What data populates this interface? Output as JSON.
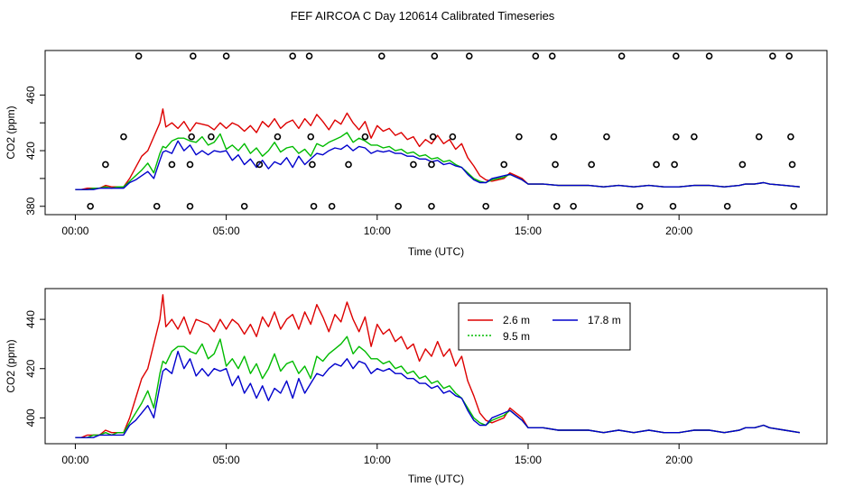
{
  "chart_data": {
    "title": "FEF AIRCOA C  Day 120614  Calibrated Timeseries",
    "colors": {
      "s2_6": "#dd0000",
      "s9_5": "#00bb00",
      "s17_8": "#0000cc",
      "marker": "#000000"
    },
    "panels": [
      {
        "id": "top",
        "type": "line",
        "xlabel": "Time (UTC)",
        "ylabel": "CO2 (ppm)",
        "xlim": [
          -1.0,
          24.9
        ],
        "ylim": [
          374,
          492
        ],
        "xticks": [
          0,
          5,
          10,
          15,
          20
        ],
        "xtick_labels": [
          "00:00",
          "05:00",
          "10:00",
          "15:00",
          "20:00"
        ],
        "yticks": [
          380,
          400,
          420,
          440,
          460
        ],
        "ytick_labels": [
          "380",
          "",
          "420",
          "",
          "460"
        ],
        "series": [
          {
            "name": "2.6 m",
            "color": "#dd0000",
            "x": [
              0,
              0.2,
              0.4,
              0.6,
              0.8,
              1.0,
              1.2,
              1.4,
              1.6,
              1.8,
              2.0,
              2.2,
              2.4,
              2.6,
              2.8,
              2.9,
              3.0,
              3.2,
              3.4,
              3.6,
              3.8,
              4.0,
              4.2,
              4.4,
              4.6,
              4.8,
              5.0,
              5.2,
              5.4,
              5.6,
              5.8,
              6.0,
              6.2,
              6.4,
              6.6,
              6.8,
              7.0,
              7.2,
              7.4,
              7.6,
              7.8,
              8.0,
              8.2,
              8.4,
              8.6,
              8.8,
              9.0,
              9.2,
              9.4,
              9.6,
              9.8,
              10.0,
              10.2,
              10.4,
              10.6,
              10.8,
              11.0,
              11.2,
              11.4,
              11.6,
              11.8,
              12.0,
              12.2,
              12.4,
              12.6,
              12.8,
              13.0,
              13.2,
              13.4,
              13.6,
              13.8,
              14.0,
              14.2,
              14.4,
              14.6,
              14.8,
              15.0,
              15.5,
              16.0,
              16.5,
              17.0,
              17.5,
              18.0,
              18.5,
              19.0,
              19.5,
              20.0,
              20.5,
              21.0,
              21.5,
              22.0,
              22.2,
              22.5,
              22.8,
              23.0,
              23.5,
              24.0
            ],
            "values": [
              392,
              392,
              393,
              393,
              393,
              395,
              394,
              394,
              394,
              400,
              408,
              416,
              420,
              430,
              440,
              450,
              437,
              440,
              436,
              441,
              434,
              440,
              439,
              438,
              435,
              440,
              436,
              440,
              438,
              434,
              438,
              433,
              441,
              437,
              443,
              436,
              440,
              442,
              436,
              443,
              438,
              446,
              441,
              435,
              442,
              439,
              447,
              440,
              435,
              441,
              429,
              438,
              434,
              436,
              431,
              433,
              428,
              430,
              423,
              428,
              425,
              431,
              425,
              428,
              421,
              425,
              415,
              409,
              402,
              399,
              398,
              399,
              400,
              404,
              402,
              400,
              396,
              396,
              395,
              395,
              395,
              394,
              395,
              394,
              395,
              394,
              394,
              395,
              395,
              394,
              395,
              396,
              396,
              397,
              396,
              395,
              394
            ]
          },
          {
            "name": "9.5 m",
            "color": "#00bb00",
            "x": [
              0,
              0.2,
              0.4,
              0.6,
              0.8,
              1.0,
              1.2,
              1.4,
              1.6,
              1.8,
              2.0,
              2.2,
              2.4,
              2.6,
              2.8,
              2.9,
              3.0,
              3.2,
              3.4,
              3.6,
              3.8,
              4.0,
              4.2,
              4.4,
              4.6,
              4.8,
              5.0,
              5.2,
              5.4,
              5.6,
              5.8,
              6.0,
              6.2,
              6.4,
              6.6,
              6.8,
              7.0,
              7.2,
              7.4,
              7.6,
              7.8,
              8.0,
              8.2,
              8.4,
              8.6,
              8.8,
              9.0,
              9.2,
              9.4,
              9.6,
              9.8,
              10.0,
              10.2,
              10.4,
              10.6,
              10.8,
              11.0,
              11.2,
              11.4,
              11.6,
              11.8,
              12.0,
              12.2,
              12.4,
              12.6,
              12.8,
              13.0,
              13.2,
              13.4,
              13.6,
              13.8,
              14.0,
              14.2,
              14.4,
              14.6,
              14.8,
              15.0,
              15.5,
              16.0,
              16.5,
              17.0,
              17.5,
              18.0,
              18.5,
              19.0,
              19.5,
              20.0,
              20.5,
              21.0,
              21.5,
              22.0,
              22.2,
              22.5,
              22.8,
              23.0,
              23.5,
              24.0
            ],
            "values": [
              392,
              392,
              392,
              393,
              393,
              394,
              393,
              394,
              394,
              398,
              402,
              406,
              411,
              404,
              418,
              423,
              422,
              427,
              429,
              429,
              427,
              426,
              430,
              424,
              426,
              432,
              421,
              424,
              420,
              425,
              418,
              422,
              416,
              420,
              426,
              419,
              422,
              423,
              418,
              421,
              416,
              425,
              423,
              426,
              428,
              430,
              433,
              426,
              429,
              427,
              424,
              424,
              422,
              423,
              420,
              421,
              418,
              419,
              416,
              417,
              414,
              415,
              412,
              413,
              410,
              408,
              404,
              400,
              398,
              397,
              399,
              400,
              401,
              403,
              401,
              399,
              396,
              396,
              395,
              395,
              395,
              394,
              395,
              394,
              395,
              394,
              394,
              395,
              395,
              394,
              395,
              396,
              396,
              397,
              396,
              395,
              394
            ]
          },
          {
            "name": "17.8 m",
            "color": "#0000cc",
            "x": [
              0,
              0.2,
              0.4,
              0.6,
              0.8,
              1.0,
              1.2,
              1.4,
              1.6,
              1.8,
              2.0,
              2.2,
              2.4,
              2.6,
              2.8,
              2.9,
              3.0,
              3.2,
              3.4,
              3.6,
              3.8,
              4.0,
              4.2,
              4.4,
              4.6,
              4.8,
              5.0,
              5.2,
              5.4,
              5.6,
              5.8,
              6.0,
              6.2,
              6.4,
              6.6,
              6.8,
              7.0,
              7.2,
              7.4,
              7.6,
              7.8,
              8.0,
              8.2,
              8.4,
              8.6,
              8.8,
              9.0,
              9.2,
              9.4,
              9.6,
              9.8,
              10.0,
              10.2,
              10.4,
              10.6,
              10.8,
              11.0,
              11.2,
              11.4,
              11.6,
              11.8,
              12.0,
              12.2,
              12.4,
              12.6,
              12.8,
              13.0,
              13.2,
              13.4,
              13.6,
              13.8,
              14.0,
              14.2,
              14.4,
              14.6,
              14.8,
              15.0,
              15.5,
              16.0,
              16.5,
              17.0,
              17.5,
              18.0,
              18.5,
              19.0,
              19.5,
              20.0,
              20.5,
              21.0,
              21.5,
              22.0,
              22.2,
              22.5,
              22.8,
              23.0,
              23.5,
              24.0
            ],
            "values": [
              392,
              392,
              392,
              392,
              393,
              393,
              393,
              393,
              393,
              397,
              399,
              402,
              405,
              400,
              413,
              419,
              420,
              418,
              427,
              420,
              424,
              417,
              420,
              417,
              420,
              419,
              420,
              413,
              417,
              410,
              414,
              408,
              413,
              407,
              412,
              410,
              415,
              408,
              416,
              410,
              414,
              418,
              417,
              420,
              422,
              421,
              424,
              420,
              423,
              422,
              418,
              420,
              419,
              420,
              418,
              418,
              416,
              416,
              414,
              414,
              412,
              413,
              410,
              411,
              409,
              408,
              403,
              399,
              397,
              397,
              400,
              401,
              402,
              403,
              401,
              399,
              396,
              396,
              395,
              395,
              395,
              394,
              395,
              394,
              395,
              394,
              394,
              395,
              395,
              394,
              395,
              396,
              396,
              397,
              396,
              395,
              394
            ]
          }
        ],
        "markers": [
          {
            "x": 0.5,
            "y": 380
          },
          {
            "x": 1.0,
            "y": 410
          },
          {
            "x": 1.6,
            "y": 430
          },
          {
            "x": 2.1,
            "y": 488
          },
          {
            "x": 2.7,
            "y": 380
          },
          {
            "x": 3.2,
            "y": 410
          },
          {
            "x": 3.8,
            "y": 380
          },
          {
            "x": 3.8,
            "y": 410
          },
          {
            "x": 3.85,
            "y": 430
          },
          {
            "x": 3.9,
            "y": 488
          },
          {
            "x": 4.5,
            "y": 430
          },
          {
            "x": 5.0,
            "y": 488
          },
          {
            "x": 5.6,
            "y": 380
          },
          {
            "x": 6.1,
            "y": 410
          },
          {
            "x": 6.7,
            "y": 430
          },
          {
            "x": 7.2,
            "y": 488
          },
          {
            "x": 7.75,
            "y": 488
          },
          {
            "x": 7.8,
            "y": 430
          },
          {
            "x": 7.85,
            "y": 410
          },
          {
            "x": 7.9,
            "y": 380
          },
          {
            "x": 8.5,
            "y": 380
          },
          {
            "x": 9.05,
            "y": 410
          },
          {
            "x": 9.6,
            "y": 430
          },
          {
            "x": 10.15,
            "y": 488
          },
          {
            "x": 10.7,
            "y": 380
          },
          {
            "x": 11.2,
            "y": 410
          },
          {
            "x": 11.8,
            "y": 380
          },
          {
            "x": 11.8,
            "y": 410
          },
          {
            "x": 11.85,
            "y": 430
          },
          {
            "x": 11.9,
            "y": 488
          },
          {
            "x": 12.5,
            "y": 430
          },
          {
            "x": 13.05,
            "y": 488
          },
          {
            "x": 13.6,
            "y": 380
          },
          {
            "x": 14.2,
            "y": 410
          },
          {
            "x": 14.7,
            "y": 430
          },
          {
            "x": 15.25,
            "y": 488
          },
          {
            "x": 15.8,
            "y": 488
          },
          {
            "x": 15.85,
            "y": 430
          },
          {
            "x": 15.9,
            "y": 410
          },
          {
            "x": 15.95,
            "y": 380
          },
          {
            "x": 16.5,
            "y": 380
          },
          {
            "x": 17.1,
            "y": 410
          },
          {
            "x": 17.6,
            "y": 430
          },
          {
            "x": 18.1,
            "y": 488
          },
          {
            "x": 18.7,
            "y": 380
          },
          {
            "x": 19.25,
            "y": 410
          },
          {
            "x": 19.8,
            "y": 380
          },
          {
            "x": 19.85,
            "y": 410
          },
          {
            "x": 19.9,
            "y": 430
          },
          {
            "x": 19.9,
            "y": 488
          },
          {
            "x": 20.5,
            "y": 430
          },
          {
            "x": 21.0,
            "y": 488
          },
          {
            "x": 21.6,
            "y": 380
          },
          {
            "x": 22.1,
            "y": 410
          },
          {
            "x": 22.65,
            "y": 430
          },
          {
            "x": 23.1,
            "y": 488
          },
          {
            "x": 23.65,
            "y": 488
          },
          {
            "x": 23.7,
            "y": 430
          },
          {
            "x": 23.75,
            "y": 410
          },
          {
            "x": 23.8,
            "y": 380
          }
        ]
      },
      {
        "id": "bottom",
        "type": "line",
        "xlabel": "Time (UTC)",
        "ylabel": "CO2 (ppm)",
        "xlim": [
          -1.0,
          24.9
        ],
        "ylim": [
          389.5,
          452.5
        ],
        "xticks": [
          0,
          5,
          10,
          15,
          20
        ],
        "xtick_labels": [
          "00:00",
          "05:00",
          "10:00",
          "15:00",
          "20:00"
        ],
        "yticks": [
          400,
          420,
          440
        ],
        "ytick_labels": [
          "400",
          "420",
          "440"
        ],
        "legend": {
          "position": "top-right",
          "entries": [
            {
              "label": "2.6 m",
              "color": "#dd0000",
              "dash": "solid"
            },
            {
              "label": "9.5 m",
              "color": "#00bb00",
              "dash": "dotted"
            },
            {
              "label": "17.8 m",
              "color": "#0000cc",
              "dash": "solid"
            }
          ]
        },
        "series_from": "top"
      }
    ]
  }
}
